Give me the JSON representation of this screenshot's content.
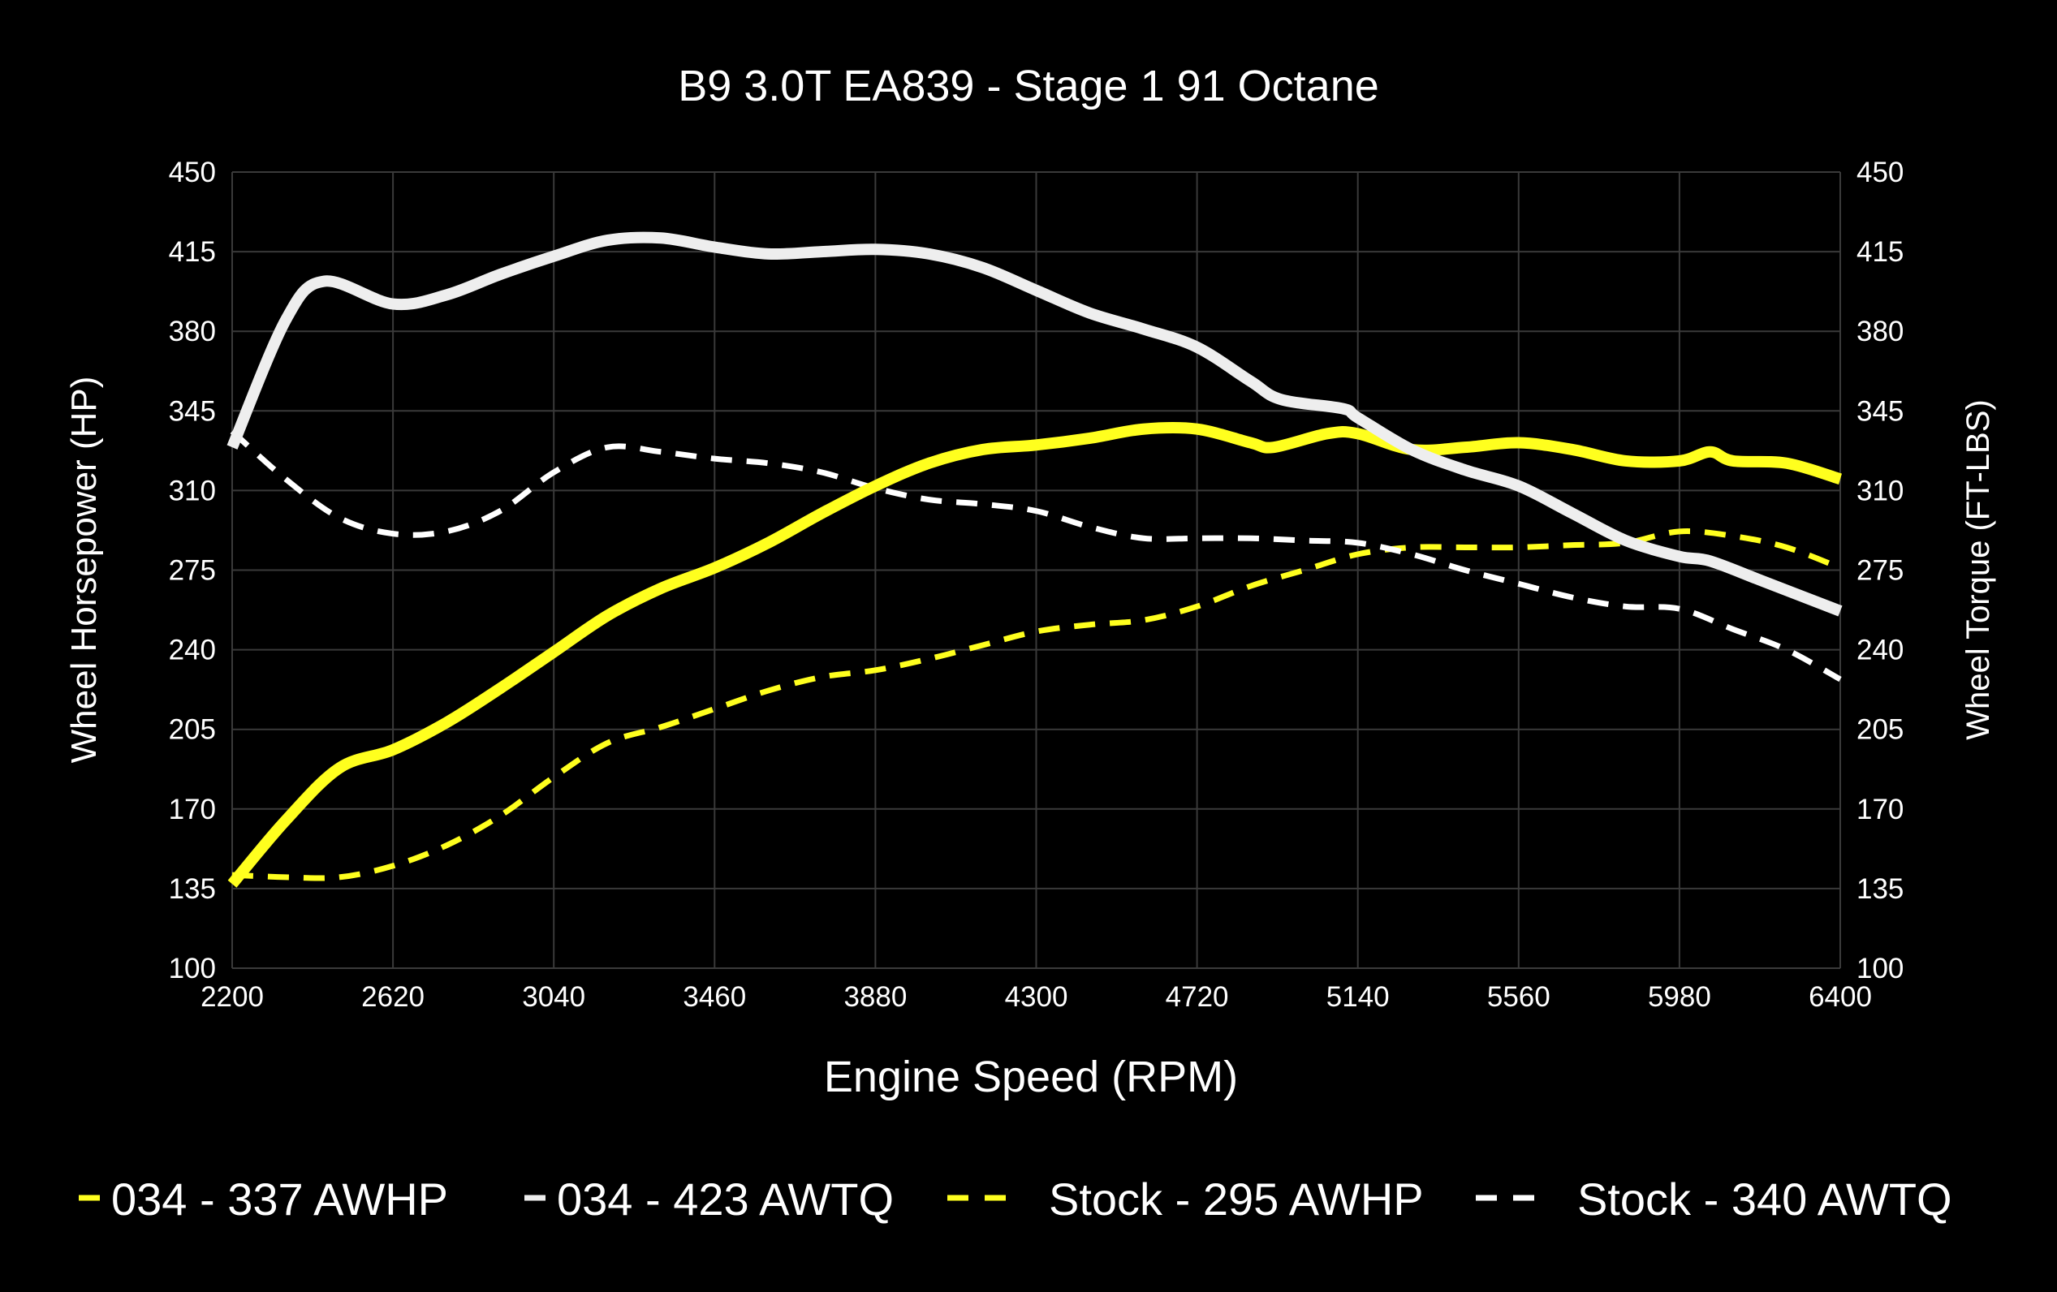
{
  "chart_data": {
    "type": "line",
    "title": "B9 3.0T EA839 - Stage 1 91 Octane",
    "xlabel": "Engine Speed (RPM)",
    "ylabel_left": "Wheel Horsepower (HP)",
    "ylabel_right": "Wheel Torque (FT-LBS)",
    "xlim": [
      2200,
      6400
    ],
    "ylim": [
      100,
      450
    ],
    "x_ticks": [
      2200,
      2620,
      3040,
      3460,
      3880,
      4300,
      4720,
      5140,
      5560,
      5980,
      6400
    ],
    "y_ticks": [
      100,
      135,
      170,
      205,
      240,
      275,
      310,
      345,
      380,
      415,
      450
    ],
    "grid": true,
    "legend_position": "bottom",
    "background": "#000000",
    "series": [
      {
        "name": "034 - 337 AWHP",
        "color": "#ffff1e",
        "style": "solid",
        "axis": "left",
        "x": [
          2200,
          2340,
          2480,
          2620,
          2760,
          2900,
          3040,
          3180,
          3320,
          3460,
          3600,
          3740,
          3880,
          4020,
          4160,
          4300,
          4440,
          4580,
          4720,
          4860,
          4920,
          5060,
          5140,
          5280,
          5420,
          5560,
          5700,
          5840,
          5980,
          6060,
          6120,
          6260,
          6400
        ],
        "y": [
          137,
          165,
          188,
          196,
          208,
          223,
          239,
          255,
          267,
          276,
          287,
          300,
          312,
          322,
          328,
          330,
          333,
          337,
          337,
          331,
          329,
          335,
          335,
          328,
          329,
          331,
          328,
          323,
          323,
          327,
          323,
          322,
          315
        ]
      },
      {
        "name": "034 - 423 AWTQ",
        "color": "#eeeeee",
        "style": "solid",
        "axis": "right",
        "x": [
          2200,
          2340,
          2440,
          2620,
          2760,
          2900,
          3040,
          3180,
          3320,
          3460,
          3600,
          3740,
          3880,
          4020,
          4160,
          4300,
          4440,
          4580,
          4720,
          4860,
          4940,
          5100,
          5140,
          5280,
          5420,
          5560,
          5700,
          5840,
          5980,
          6060,
          6200,
          6400
        ],
        "y": [
          329,
          385,
          402,
          392,
          396,
          405,
          413,
          420,
          421,
          417,
          414,
          415,
          416,
          414,
          408,
          398,
          388,
          381,
          373,
          358,
          350,
          346,
          342,
          328,
          319,
          312,
          300,
          288,
          281,
          279,
          270,
          257
        ]
      },
      {
        "name": "Stock - 295 AWHP",
        "color": "#ffff1e",
        "style": "dashed",
        "axis": "left",
        "x": [
          2200,
          2340,
          2480,
          2620,
          2760,
          2900,
          3040,
          3180,
          3320,
          3460,
          3600,
          3740,
          3880,
          4020,
          4160,
          4300,
          4440,
          4580,
          4720,
          4860,
          5000,
          5140,
          5280,
          5420,
          5560,
          5700,
          5840,
          5980,
          6120,
          6260,
          6400
        ],
        "y": [
          141,
          140,
          140,
          145,
          154,
          167,
          184,
          199,
          206,
          214,
          222,
          228,
          231,
          236,
          242,
          248,
          251,
          253,
          259,
          268,
          275,
          282,
          285,
          285,
          285,
          286,
          287,
          292,
          290,
          285,
          276
        ]
      },
      {
        "name": "Stock - 340 AWTQ",
        "color": "#ffffff",
        "style": "dashed",
        "axis": "right",
        "x": [
          2200,
          2340,
          2480,
          2620,
          2760,
          2900,
          3040,
          3180,
          3320,
          3460,
          3600,
          3740,
          3880,
          4020,
          4160,
          4300,
          4440,
          4580,
          4720,
          4860,
          5000,
          5140,
          5280,
          5420,
          5560,
          5700,
          5840,
          5980,
          6120,
          6260,
          6400
        ],
        "y": [
          336,
          315,
          298,
          291,
          292,
          301,
          318,
          329,
          327,
          324,
          322,
          318,
          311,
          306,
          304,
          301,
          294,
          289,
          289,
          289,
          288,
          287,
          282,
          275,
          269,
          263,
          259,
          258,
          249,
          240,
          227
        ]
      }
    ]
  }
}
